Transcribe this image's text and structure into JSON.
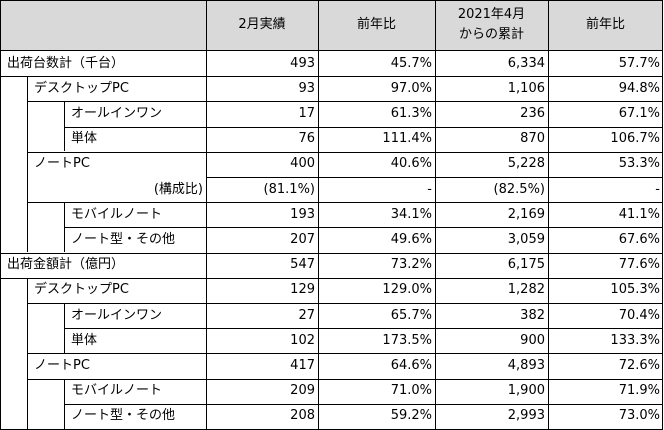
{
  "headers": [
    "",
    "2月実績",
    "前年比",
    [
      "2021年4月",
      "からの累計"
    ],
    "前年比"
  ],
  "rows": [
    {
      "level": 0,
      "label": "出荷台数計（千台）",
      "values": [
        "493",
        "45.7%",
        "6,334",
        "57.7%"
      ]
    },
    {
      "level": 1,
      "label": "デスクトップPC",
      "values": [
        "93",
        "97.0%",
        "1,106",
        "94.8%"
      ]
    },
    {
      "level": 2,
      "label": "オールインワン",
      "values": [
        "17",
        "61.3%",
        "236",
        "67.1%"
      ]
    },
    {
      "level": 2,
      "label": "単体",
      "values": [
        "76",
        "111.4%",
        "870",
        "106.7%"
      ]
    },
    {
      "level": 1,
      "label": "ノートPC",
      "values": [
        "400",
        "40.6%",
        "5,228",
        "53.3%"
      ]
    },
    {
      "level": 1,
      "label": "(構成比)",
      "align": "right",
      "values": [
        "(81.1%)",
        "-",
        "(82.5%)",
        "-"
      ]
    },
    {
      "level": 2,
      "label": "モバイルノート",
      "values": [
        "193",
        "34.1%",
        "2,169",
        "41.1%"
      ]
    },
    {
      "level": 2,
      "label": "ノート型・その他",
      "values": [
        "207",
        "49.6%",
        "3,059",
        "67.6%"
      ]
    },
    {
      "level": 0,
      "label": "出荷金額計（億円）",
      "values": [
        "547",
        "73.2%",
        "6,175",
        "77.6%"
      ]
    },
    {
      "level": 1,
      "label": "デスクトップPC",
      "values": [
        "129",
        "129.0%",
        "1,282",
        "105.3%"
      ]
    },
    {
      "level": 2,
      "label": "オールインワン",
      "values": [
        "27",
        "65.7%",
        "382",
        "70.4%"
      ]
    },
    {
      "level": 2,
      "label": "単体",
      "values": [
        "102",
        "173.5%",
        "900",
        "133.3%"
      ]
    },
    {
      "level": 1,
      "label": "ノートPC",
      "values": [
        "417",
        "64.6%",
        "4,893",
        "72.6%"
      ]
    },
    {
      "level": 2,
      "label": "モバイルノート",
      "values": [
        "209",
        "71.0%",
        "1,900",
        "71.9%"
      ]
    },
    {
      "level": 2,
      "label": "ノート型・その他",
      "values": [
        "208",
        "59.2%",
        "2,993",
        "73.0%"
      ]
    }
  ],
  "colors": {
    "header_bg": "#d9d9d9",
    "border": "#000000",
    "body_bg": "#ffffff"
  }
}
